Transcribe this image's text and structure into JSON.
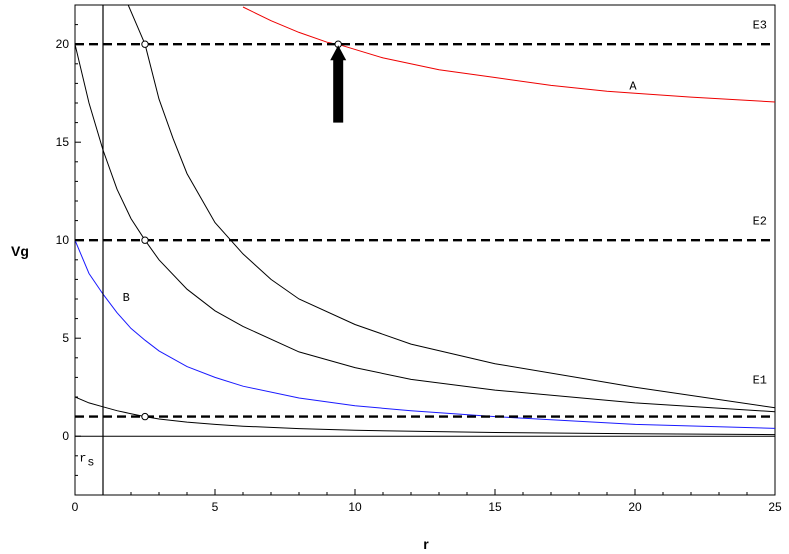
{
  "chart_data": {
    "type": "line",
    "xlabel": "r",
    "ylabel": "Vg",
    "xlim": [
      0,
      25
    ],
    "ylim": [
      -3,
      22
    ],
    "grid": false,
    "x_ticks": [
      "0",
      "5",
      "10",
      "15",
      "20",
      "25"
    ],
    "y_ticks": [
      "0",
      "5",
      "10",
      "15",
      "20"
    ],
    "vertical_line_x": 1,
    "colors": {
      "red": "#ee0000",
      "blue": "#1a1aff",
      "black": "#000000"
    },
    "series": [
      {
        "name": "A",
        "color": "#ee0000",
        "style": "solid",
        "x": [
          6,
          7,
          8,
          9,
          9.5,
          11,
          13,
          15,
          17,
          19,
          20,
          22,
          25
        ],
        "y": [
          21.9,
          21.2,
          20.6,
          20.1,
          19.95,
          19.3,
          18.7,
          18.3,
          17.9,
          17.6,
          17.5,
          17.3,
          17.05
        ]
      },
      {
        "name": "B",
        "color": "#1a1aff",
        "style": "solid",
        "x": [
          0,
          0.5,
          1,
          1.5,
          2,
          2.5,
          3,
          4,
          5,
          6,
          8,
          10,
          12,
          15,
          20,
          25
        ],
        "y": [
          10,
          8.3,
          7.25,
          6.3,
          5.5,
          4.9,
          4.35,
          3.55,
          3.0,
          2.55,
          1.95,
          1.55,
          1.3,
          1.0,
          0.6,
          0.4
        ]
      },
      {
        "color": "#000000",
        "style": "solid",
        "x": [
          0,
          0.5,
          1,
          1.5,
          2,
          2.5,
          3,
          4,
          5,
          6,
          8,
          10,
          15,
          20,
          25
        ],
        "y": [
          2,
          1.7,
          1.5,
          1.3,
          1.15,
          1.0,
          0.88,
          0.72,
          0.6,
          0.51,
          0.39,
          0.3,
          0.19,
          0.12,
          0.08
        ]
      },
      {
        "color": "#000000",
        "style": "solid",
        "x": [
          0,
          0.5,
          1,
          1.5,
          2,
          2.5,
          3,
          4,
          5,
          6,
          8,
          10,
          12,
          15,
          20,
          25
        ],
        "y": [
          20,
          17.0,
          14.6,
          12.6,
          11.1,
          10.0,
          9.0,
          7.5,
          6.4,
          5.6,
          4.3,
          3.5,
          2.9,
          2.35,
          1.7,
          1.25
        ]
      },
      {
        "color": "#000000",
        "style": "solid",
        "x": [
          1.9,
          2.2,
          2.5,
          3,
          3.5,
          4,
          5,
          6,
          7,
          8,
          10,
          12,
          15,
          20,
          25
        ],
        "y": [
          22,
          21.0,
          20.0,
          17.2,
          15.2,
          13.4,
          10.9,
          9.3,
          8.0,
          7.0,
          5.7,
          4.7,
          3.7,
          2.5,
          1.45
        ]
      },
      {
        "name": "E3",
        "color": "#000000",
        "style": "dashed",
        "x": [
          0,
          25
        ],
        "y": [
          20,
          20
        ]
      },
      {
        "name": "E2",
        "color": "#000000",
        "style": "dashed",
        "x": [
          0,
          25
        ],
        "y": [
          10,
          10
        ]
      },
      {
        "name": "E1",
        "color": "#000000",
        "style": "dashed",
        "x": [
          0,
          25
        ],
        "y": [
          1,
          1
        ]
      }
    ],
    "markers": [
      {
        "x": 2.5,
        "y": 20
      },
      {
        "x": 2.5,
        "y": 10
      },
      {
        "x": 2.5,
        "y": 1
      },
      {
        "x": 9.4,
        "y": 20
      }
    ],
    "annotations": [
      {
        "text": "E3",
        "x": 24.2,
        "y": 20.8
      },
      {
        "text": "E2",
        "x": 24.2,
        "y": 10.8
      },
      {
        "text": "E1",
        "x": 24.2,
        "y": 2.7
      },
      {
        "text": "A",
        "x": 19.8,
        "y": 17.7
      },
      {
        "text": "B",
        "x": 1.7,
        "y": 6.9
      }
    ],
    "rs_label": {
      "main": "r",
      "sub": "s",
      "x": 0.15,
      "y": -1.3
    },
    "arrow": {
      "x": 9.4,
      "y_from": 16.0,
      "y_to": 20.0
    }
  }
}
